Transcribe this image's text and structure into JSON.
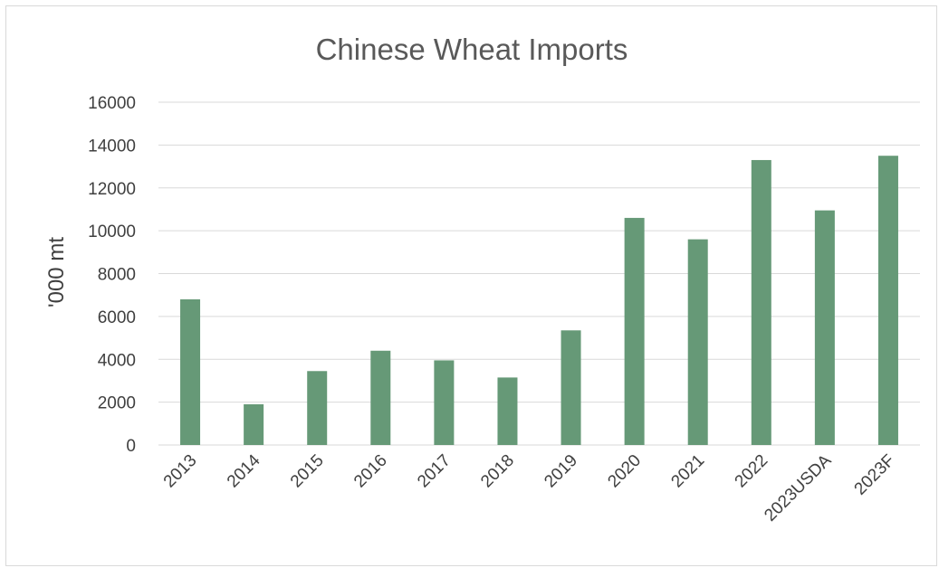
{
  "chart_data": {
    "type": "bar",
    "title": "Chinese Wheat Imports",
    "xlabel": "",
    "ylabel": "'000 mt",
    "ylim": [
      0,
      16000
    ],
    "yticks": [
      "0",
      "2000",
      "4000",
      "6000",
      "8000",
      "10000",
      "12000",
      "14000",
      "16000"
    ],
    "grid": true,
    "legend": "none",
    "bar_color": "#669977",
    "categories": [
      "2013",
      "2014",
      "2015",
      "2016",
      "2017",
      "2018",
      "2019",
      "2020",
      "2021",
      "2022",
      "2023USDA",
      "2023F"
    ],
    "values": [
      6800,
      1900,
      3450,
      4400,
      3950,
      3150,
      5350,
      10600,
      9600,
      13300,
      10950,
      13500
    ]
  }
}
